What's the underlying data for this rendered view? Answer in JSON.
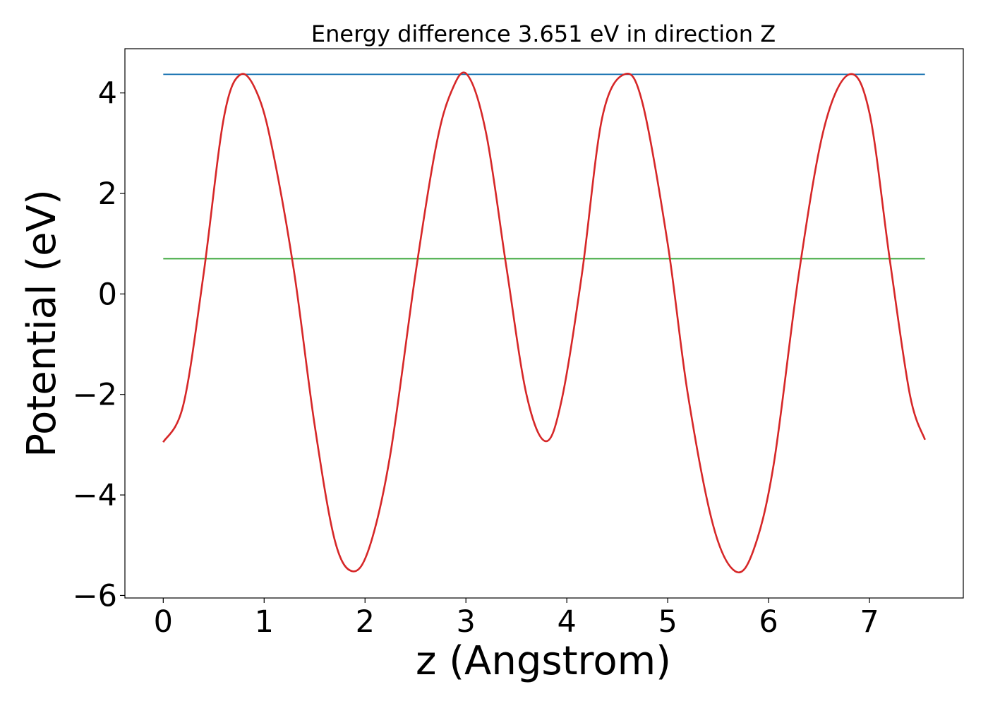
{
  "chart_data": {
    "type": "line",
    "title": "Energy difference 3.651 eV in direction Z",
    "xlabel": "z (Angstrom)",
    "ylabel": "Potential (eV)",
    "xlim": [
      -0.38,
      7.93
    ],
    "ylim": [
      -6.05,
      4.88
    ],
    "xticks": [
      0,
      1,
      2,
      3,
      4,
      5,
      6,
      7
    ],
    "yticks": [
      -6,
      -4,
      -2,
      0,
      2,
      4
    ],
    "ytick_labels": [
      "−6",
      "−4",
      "−2",
      "0",
      "2",
      "4"
    ],
    "grid": false,
    "legend": "none",
    "colors": {
      "potential": "#d62728",
      "vacuum_level": "#1f77b4",
      "fermi_level": "#2ca02c"
    },
    "series": [
      {
        "role": "potential",
        "x": [
          0.0,
          0.2,
          0.4,
          0.6,
          0.77,
          0.95,
          1.1,
          1.3,
          1.5,
          1.7,
          1.88,
          2.05,
          2.25,
          2.5,
          2.7,
          2.85,
          3.01,
          3.2,
          3.4,
          3.6,
          3.79,
          3.95,
          4.15,
          4.35,
          4.57,
          4.75,
          5.0,
          5.2,
          5.45,
          5.67,
          5.85,
          6.05,
          6.3,
          6.55,
          6.8,
          7.0,
          7.2,
          7.4,
          7.55
        ],
        "y": [
          -2.95,
          -2.2,
          0.4,
          3.5,
          4.37,
          3.9,
          2.7,
          0.4,
          -2.6,
          -4.9,
          -5.52,
          -5.0,
          -3.2,
          0.4,
          2.9,
          4.0,
          4.37,
          3.2,
          0.55,
          -2.0,
          -2.93,
          -2.1,
          0.4,
          3.5,
          4.37,
          3.8,
          1.0,
          -2.0,
          -4.6,
          -5.52,
          -5.1,
          -3.4,
          0.4,
          3.3,
          4.37,
          3.6,
          0.7,
          -2.0,
          -2.9
        ]
      },
      {
        "role": "vacuum_level",
        "x": [
          0.0,
          7.55
        ],
        "y": [
          4.37,
          4.37
        ]
      },
      {
        "role": "fermi_level",
        "x": [
          0.0,
          7.55
        ],
        "y": [
          0.7,
          0.7
        ]
      }
    ]
  }
}
